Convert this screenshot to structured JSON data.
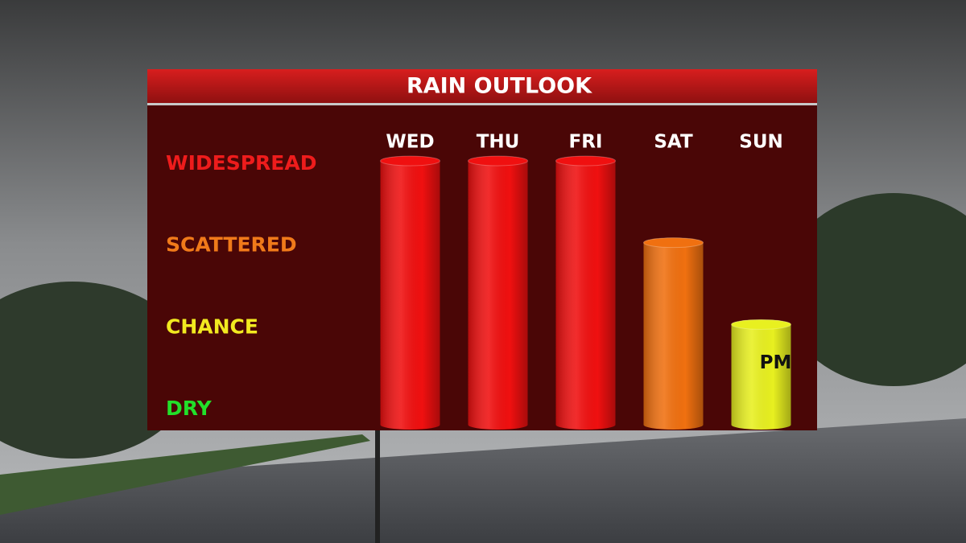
{
  "chart_data": {
    "type": "bar",
    "title": "RAIN OUTLOOK",
    "categories": [
      "WED",
      "THU",
      "FRI",
      "SAT",
      "SUN"
    ],
    "values": [
      3,
      3,
      3,
      2,
      1
    ],
    "colors": [
      "#f01010",
      "#f01010",
      "#f01010",
      "#f07010",
      "#e8f020"
    ],
    "ylim": [
      0,
      3
    ],
    "yticks": [
      {
        "value": 0,
        "label": "DRY"
      },
      {
        "value": 1,
        "label": "CHANCE"
      },
      {
        "value": 2,
        "label": "SCATTERED"
      },
      {
        "value": 3,
        "label": "WIDESPREAD"
      }
    ],
    "ytick_colors": [
      "#22e02a",
      "#f2ea20",
      "#f07a1a",
      "#ee1c1c"
    ],
    "annotations": [
      {
        "text": "PM",
        "category": "SUN"
      }
    ]
  }
}
